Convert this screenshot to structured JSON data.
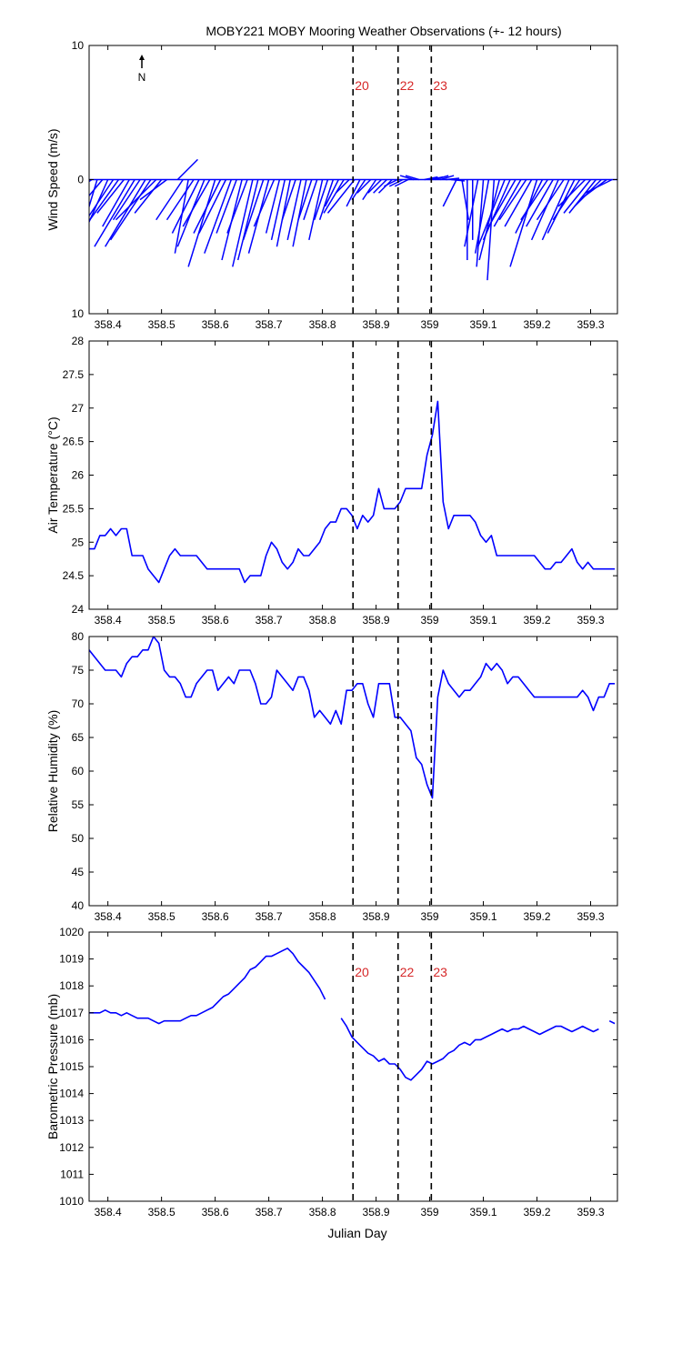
{
  "title": "MOBY221 MOBY Mooring Weather Observations (+- 12 hours)",
  "north_label": "N",
  "xlabel": "Julian Day",
  "colors": {
    "series": "#0000ff",
    "marker_label": "#d62728",
    "axis": "#000000"
  },
  "x_ticks": [
    "358.4",
    "358.5",
    "358.6",
    "358.7",
    "358.8",
    "358.9",
    "359",
    "359.1",
    "359.2",
    "359.3"
  ],
  "x_tick_values": [
    358.4,
    358.5,
    358.6,
    358.7,
    358.8,
    358.9,
    359.0,
    359.1,
    359.2,
    359.3
  ],
  "xlim": [
    358.365,
    359.35
  ],
  "markers": [
    {
      "label": "20",
      "x": 358.857
    },
    {
      "label": "22",
      "x": 358.941
    },
    {
      "label": "23",
      "x": 359.003
    }
  ],
  "chart_data": [
    {
      "type": "quiver",
      "ylabel": "Wind Speed (m/s)",
      "ylim": [
        -10,
        10
      ],
      "y_ticks": [
        "10",
        "0",
        "10"
      ],
      "y_tick_values": [
        10,
        0,
        -10
      ],
      "show_markers": true,
      "show_north_arrow": true,
      "x": [
        358.37,
        358.38,
        358.39,
        358.4,
        358.41,
        358.42,
        358.43,
        358.44,
        358.45,
        358.46,
        358.47,
        358.48,
        358.49,
        358.5,
        358.51,
        358.53,
        358.54,
        358.55,
        358.56,
        358.57,
        358.58,
        358.59,
        358.6,
        358.61,
        358.62,
        358.63,
        358.64,
        358.65,
        358.66,
        358.67,
        358.68,
        358.69,
        358.7,
        358.71,
        358.72,
        358.73,
        358.74,
        358.75,
        358.76,
        358.77,
        358.78,
        358.79,
        358.8,
        358.81,
        358.82,
        358.83,
        358.84,
        358.85,
        358.86,
        358.87,
        358.88,
        358.89,
        358.9,
        358.91,
        358.92,
        358.93,
        358.94,
        358.95,
        358.96,
        358.97,
        358.98,
        358.99,
        359.0,
        359.01,
        359.02,
        359.03,
        359.04,
        359.05,
        359.06,
        359.07,
        359.08,
        359.09,
        359.1,
        359.11,
        359.12,
        359.13,
        359.14,
        359.15,
        359.16,
        359.17,
        359.18,
        359.19,
        359.2,
        359.21,
        359.22,
        359.23,
        359.24,
        359.25,
        359.26,
        359.27,
        359.28,
        359.29,
        359.3,
        359.31,
        359.32,
        359.33,
        359.34
      ],
      "u": [
        -1.5,
        -1.5,
        -2.5,
        -2,
        -2,
        -2.5,
        -2,
        -2,
        -3,
        -2,
        -3,
        -3,
        -3,
        -2,
        -2,
        1.5,
        -2,
        -1,
        -2,
        -2,
        -2,
        -2,
        -2,
        -2,
        -2,
        -2,
        -1.5,
        -1.5,
        -1.5,
        -1.5,
        -1.5,
        -1.5,
        -1.5,
        -1.5,
        -1,
        -1,
        -1,
        -1,
        -1,
        -1,
        -1,
        -1,
        -1,
        -1,
        -1,
        -1,
        -1.5,
        -1,
        -2,
        -1,
        -1,
        -1,
        -1,
        -1,
        -1,
        -1,
        -1,
        -1,
        -1,
        -1,
        -1,
        1,
        1,
        1,
        1,
        1,
        1,
        -1,
        0.5,
        0,
        0,
        -1,
        -0.5,
        -1,
        -0.5,
        -1.5,
        -2,
        -2,
        -2,
        -2,
        -2,
        -2,
        -2,
        -2,
        -2,
        -2,
        -2,
        -2,
        -2,
        -2,
        -2,
        -2,
        -2,
        -2,
        -2,
        -2,
        -2
      ],
      "v": [
        -1,
        -5,
        -3,
        -4.5,
        -3,
        -3.5,
        -2.5,
        -3.5,
        -5,
        -3,
        -5,
        -4.5,
        -3,
        -2.5,
        -1.5,
        1.5,
        -3,
        -5.5,
        -3,
        -4,
        -5,
        -3.5,
        -6.5,
        -4,
        -4,
        -5.5,
        -4,
        -6,
        -4,
        -6.5,
        -6,
        -4.5,
        -5.5,
        -3.5,
        -4,
        -4.5,
        -5,
        -3,
        -4.5,
        -5,
        -3,
        -3,
        -4.5,
        -3,
        -3,
        -2,
        -2.5,
        -1,
        -2.5,
        -2,
        -1.5,
        -1,
        -1.5,
        -1,
        -1,
        -1,
        -0.5,
        -0.5,
        -0.5,
        0.3,
        0.3,
        0.2,
        0.2,
        0.3,
        0.3,
        0.1,
        -0.1,
        -2,
        -3,
        -6,
        -4.5,
        -5,
        -6.5,
        -5.5,
        -7.5,
        -6,
        -5,
        -4.5,
        -3.5,
        -3.5,
        -3,
        -3.5,
        -6.5,
        -4,
        -3,
        -3.5,
        -4.5,
        -3,
        -4.5,
        -4,
        -3,
        -2,
        -2.5,
        -2.5,
        -2,
        -1.5,
        -1
      ]
    },
    {
      "type": "line",
      "ylabel": "Air Temperature (°C)",
      "ylim": [
        24,
        28
      ],
      "y_ticks": [
        "28",
        "27.5",
        "27",
        "26.5",
        "26",
        "25.5",
        "25",
        "24.5",
        "24"
      ],
      "y_tick_values": [
        28,
        27.5,
        27,
        26.5,
        26,
        25.5,
        25,
        24.5,
        24
      ],
      "show_markers": false,
      "x": [
        358.365,
        358.375,
        358.385,
        358.395,
        358.405,
        358.415,
        358.425,
        358.435,
        358.445,
        358.455,
        358.465,
        358.475,
        358.485,
        358.495,
        358.505,
        358.515,
        358.525,
        358.535,
        358.545,
        358.555,
        358.565,
        358.575,
        358.585,
        358.595,
        358.605,
        358.615,
        358.625,
        358.635,
        358.645,
        358.655,
        358.665,
        358.675,
        358.685,
        358.695,
        358.705,
        358.715,
        358.725,
        358.735,
        358.745,
        358.755,
        358.765,
        358.775,
        358.785,
        358.795,
        358.805,
        358.815,
        358.825,
        358.835,
        358.845,
        358.855,
        358.865,
        358.875,
        358.885,
        358.895,
        358.905,
        358.915,
        358.925,
        358.935,
        358.945,
        358.955,
        358.965,
        358.975,
        358.985,
        358.995,
        359.005,
        359.015,
        359.025,
        359.035,
        359.045,
        359.055,
        359.065,
        359.075,
        359.085,
        359.095,
        359.105,
        359.115,
        359.125,
        359.135,
        359.145,
        359.155,
        359.165,
        359.175,
        359.185,
        359.195,
        359.205,
        359.215,
        359.225,
        359.235,
        359.245,
        359.255,
        359.265,
        359.275,
        359.285,
        359.295,
        359.305,
        359.315,
        359.325,
        359.335,
        359.345
      ],
      "y": [
        24.9,
        24.9,
        25.1,
        25.1,
        25.2,
        25.1,
        25.2,
        25.2,
        24.8,
        24.8,
        24.8,
        24.6,
        24.5,
        24.4,
        24.6,
        24.8,
        24.9,
        24.8,
        24.8,
        24.8,
        24.8,
        24.7,
        24.6,
        24.6,
        24.6,
        24.6,
        24.6,
        24.6,
        24.6,
        24.4,
        24.5,
        24.5,
        24.5,
        24.8,
        25.0,
        24.9,
        24.7,
        24.6,
        24.7,
        24.9,
        24.8,
        24.8,
        24.9,
        25.0,
        25.2,
        25.3,
        25.3,
        25.5,
        25.5,
        25.4,
        25.2,
        25.4,
        25.3,
        25.4,
        25.8,
        25.5,
        25.5,
        25.5,
        25.6,
        25.8,
        25.8,
        25.8,
        25.8,
        26.3,
        26.6,
        27.1,
        25.6,
        25.2,
        25.4,
        25.4,
        25.4,
        25.4,
        25.3,
        25.1,
        25.0,
        25.1,
        24.8,
        24.8,
        24.8,
        24.8,
        24.8,
        24.8,
        24.8,
        24.8,
        24.7,
        24.6,
        24.6,
        24.7,
        24.7,
        24.8,
        24.9,
        24.7,
        24.6,
        24.7,
        24.6,
        24.6,
        24.6,
        24.6,
        24.6
      ]
    },
    {
      "type": "line",
      "ylabel": "Relative Humidity (%)",
      "ylim": [
        40,
        80
      ],
      "y_ticks": [
        "80",
        "75",
        "70",
        "65",
        "60",
        "55",
        "50",
        "45",
        "40"
      ],
      "y_tick_values": [
        80,
        75,
        70,
        65,
        60,
        55,
        50,
        45,
        40
      ],
      "show_markers": false,
      "x": [
        358.365,
        358.375,
        358.385,
        358.395,
        358.405,
        358.415,
        358.425,
        358.435,
        358.445,
        358.455,
        358.465,
        358.475,
        358.485,
        358.495,
        358.505,
        358.515,
        358.525,
        358.535,
        358.545,
        358.555,
        358.565,
        358.575,
        358.585,
        358.595,
        358.605,
        358.615,
        358.625,
        358.635,
        358.645,
        358.655,
        358.665,
        358.675,
        358.685,
        358.695,
        358.705,
        358.715,
        358.725,
        358.735,
        358.745,
        358.755,
        358.765,
        358.775,
        358.785,
        358.795,
        358.805,
        358.815,
        358.825,
        358.835,
        358.845,
        358.855,
        358.865,
        358.875,
        358.885,
        358.895,
        358.905,
        358.915,
        358.925,
        358.935,
        358.945,
        358.955,
        358.965,
        358.975,
        358.985,
        358.995,
        359.005,
        359.015,
        359.025,
        359.035,
        359.045,
        359.055,
        359.065,
        359.075,
        359.085,
        359.095,
        359.105,
        359.115,
        359.125,
        359.135,
        359.145,
        359.155,
        359.165,
        359.175,
        359.185,
        359.195,
        359.205,
        359.215,
        359.225,
        359.235,
        359.245,
        359.255,
        359.265,
        359.275,
        359.285,
        359.295,
        359.305,
        359.315,
        359.325,
        359.335,
        359.345
      ],
      "y": [
        78,
        77,
        76,
        75,
        75,
        75,
        74,
        76,
        77,
        77,
        78,
        78,
        80,
        79,
        75,
        74,
        74,
        73,
        71,
        71,
        73,
        74,
        75,
        75,
        72,
        73,
        74,
        73,
        75,
        75,
        75,
        73,
        70,
        70,
        71,
        75,
        74,
        73,
        72,
        74,
        74,
        72,
        68,
        69,
        68,
        67,
        69,
        67,
        72,
        72,
        73,
        73,
        70,
        68,
        73,
        73,
        73,
        68,
        68,
        67,
        66,
        62,
        61,
        58,
        56,
        71,
        75,
        73,
        72,
        71,
        72,
        72,
        73,
        74,
        76,
        75,
        76,
        75,
        73,
        74,
        74,
        73,
        72,
        71,
        71,
        71,
        71,
        71,
        71,
        71,
        71,
        71,
        72,
        71,
        69,
        71,
        71,
        73,
        73
      ]
    },
    {
      "type": "line",
      "ylabel": "Barometric Pressure (mb)",
      "ylim": [
        1010,
        1020
      ],
      "y_ticks": [
        "1020",
        "1019",
        "1018",
        "1017",
        "1016",
        "1015",
        "1014",
        "1013",
        "1012",
        "1011",
        "1010"
      ],
      "y_tick_values": [
        1020,
        1019,
        1018,
        1017,
        1016,
        1015,
        1014,
        1013,
        1012,
        1011,
        1010
      ],
      "show_markers": true,
      "x": [
        358.365,
        358.375,
        358.385,
        358.395,
        358.405,
        358.415,
        358.425,
        358.435,
        358.445,
        358.455,
        358.465,
        358.475,
        358.485,
        358.495,
        358.505,
        358.515,
        358.525,
        358.535,
        358.545,
        358.555,
        358.565,
        358.575,
        358.585,
        358.595,
        358.605,
        358.615,
        358.625,
        358.635,
        358.645,
        358.655,
        358.665,
        358.675,
        358.685,
        358.695,
        358.705,
        358.715,
        358.725,
        358.735,
        358.745,
        358.755,
        358.765,
        358.775,
        358.785,
        358.795,
        358.805,
        null,
        358.835,
        358.845,
        358.855,
        358.865,
        358.875,
        358.885,
        358.895,
        358.905,
        358.915,
        358.925,
        358.935,
        358.945,
        358.955,
        358.965,
        358.975,
        358.985,
        358.995,
        359.005,
        359.015,
        359.025,
        359.035,
        359.045,
        359.055,
        359.065,
        359.075,
        359.085,
        359.095,
        359.105,
        359.115,
        359.125,
        359.135,
        359.145,
        359.155,
        359.165,
        359.175,
        359.185,
        359.195,
        359.205,
        359.215,
        359.225,
        359.235,
        359.245,
        359.255,
        359.265,
        359.275,
        359.285,
        359.295,
        359.305,
        359.315,
        null,
        359.335,
        359.345
      ],
      "y": [
        1017,
        1017,
        1017,
        1017.1,
        1017,
        1017,
        1016.9,
        1017,
        1016.9,
        1016.8,
        1016.8,
        1016.8,
        1016.7,
        1016.6,
        1016.7,
        1016.7,
        1016.7,
        1016.7,
        1016.8,
        1016.9,
        1016.9,
        1017,
        1017.1,
        1017.2,
        1017.4,
        1017.6,
        1017.7,
        1017.9,
        1018.1,
        1018.3,
        1018.6,
        1018.7,
        1018.9,
        1019.1,
        1019.1,
        1019.2,
        1019.3,
        1019.4,
        1019.2,
        1018.9,
        1018.7,
        1018.5,
        1018.2,
        1017.9,
        1017.5,
        null,
        1016.8,
        1016.5,
        1016.1,
        1015.9,
        1015.7,
        1015.5,
        1015.4,
        1015.2,
        1015.3,
        1015.1,
        1015.1,
        1014.9,
        1014.6,
        1014.5,
        1014.7,
        1014.9,
        1015.2,
        1015.1,
        1015.2,
        1015.3,
        1015.5,
        1015.6,
        1015.8,
        1015.9,
        1015.8,
        1016,
        1016,
        1016.1,
        1016.2,
        1016.3,
        1016.4,
        1016.3,
        1016.4,
        1016.4,
        1016.5,
        1016.4,
        1016.3,
        1016.2,
        1016.3,
        1016.4,
        1016.5,
        1016.5,
        1016.4,
        1016.3,
        1016.4,
        1016.5,
        1016.4,
        1016.3,
        1016.4,
        null,
        1016.7,
        1016.6
      ]
    }
  ]
}
